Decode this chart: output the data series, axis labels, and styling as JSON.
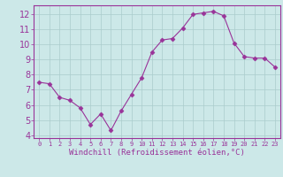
{
  "x": [
    0,
    1,
    2,
    3,
    4,
    5,
    6,
    7,
    8,
    9,
    10,
    11,
    12,
    13,
    14,
    15,
    16,
    17,
    18,
    19,
    20,
    21,
    22,
    23
  ],
  "y": [
    7.5,
    7.4,
    6.5,
    6.3,
    5.8,
    4.7,
    5.4,
    4.3,
    5.6,
    6.7,
    7.8,
    9.5,
    10.3,
    10.4,
    11.1,
    12.0,
    12.1,
    12.2,
    11.9,
    10.1,
    9.2,
    9.1,
    9.1,
    8.5
  ],
  "line_color": "#993399",
  "marker": "D",
  "marker_size": 2.5,
  "xlabel": "Windchill (Refroidissement éolien,°C)",
  "xlim": [
    -0.5,
    23.5
  ],
  "ylim": [
    3.8,
    12.6
  ],
  "yticks": [
    4,
    5,
    6,
    7,
    8,
    9,
    10,
    11,
    12
  ],
  "xtick_labels": [
    "0",
    "1",
    "2",
    "3",
    "4",
    "5",
    "6",
    "7",
    "8",
    "9",
    "10",
    "11",
    "12",
    "13",
    "14",
    "15",
    "16",
    "17",
    "18",
    "19",
    "20",
    "21",
    "22",
    "23"
  ],
  "bg_color": "#cce8e8",
  "grid_color": "#aacccc",
  "tick_label_color": "#993399",
  "xlabel_color": "#993399",
  "border_color": "#993399",
  "ytick_fontsize": 7,
  "xtick_fontsize": 5,
  "xlabel_fontsize": 6.5
}
